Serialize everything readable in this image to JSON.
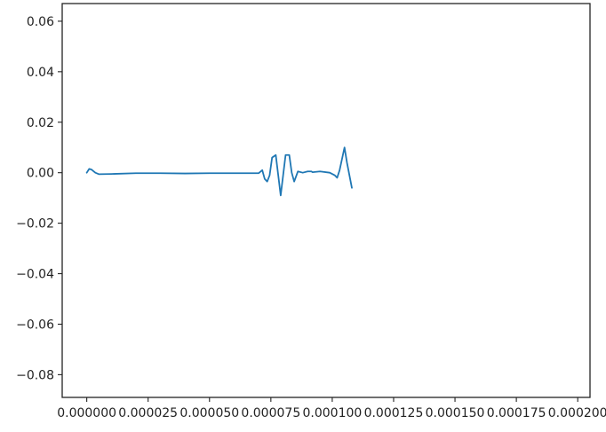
{
  "chart_data": {
    "type": "line",
    "title": "",
    "xlabel": "",
    "ylabel": "",
    "xlim": [
      -1e-05,
      0.000205
    ],
    "ylim": [
      -0.089,
      0.067
    ],
    "grid": false,
    "legend": "none",
    "x_ticks": [
      0.0,
      2.5e-05,
      5e-05,
      7.5e-05,
      0.0001,
      0.000125,
      0.00015,
      0.000175,
      0.0002
    ],
    "x_tick_labels": [
      "0.000000",
      "0.000025",
      "0.000050",
      "0.000075",
      "0.000100",
      "0.000125",
      "0.000150",
      "0.000175",
      "0.000200"
    ],
    "y_ticks": [
      -0.08,
      -0.06,
      -0.04,
      -0.02,
      0.0,
      0.02,
      0.04,
      0.06
    ],
    "y_tick_labels": [
      "−0.08",
      "−0.06",
      "−0.04",
      "−0.02",
      "0.00",
      "0.02",
      "0.04",
      "0.06"
    ],
    "colors": {
      "series": "#1f77b4",
      "axis": "#222222"
    },
    "series": [
      {
        "x": [
          0.0,
          1e-06,
          2e-06,
          3.5e-06,
          5e-06,
          1e-05,
          2e-05,
          3e-05,
          4e-05,
          5e-05,
          6e-05,
          7e-05,
          7.15e-05,
          7.25e-05,
          7.35e-05,
          7.45e-05,
          7.55e-05,
          7.7e-05,
          7.8e-05,
          7.9e-05,
          8e-05,
          8.1e-05,
          8.25e-05,
          8.35e-05,
          8.45e-05,
          8.6e-05,
          8.8e-05,
          9e-05,
          9.2e-05,
          9.5e-05,
          9.9e-05,
          0.000101,
          0.000102,
          0.000103,
          0.000105,
          0.000106,
          9.15e-05,
          0.000108
        ],
        "y": [
          0.0,
          0.0015,
          0.0012,
          0.0,
          -0.0006,
          -0.0005,
          -0.0002,
          -0.0002,
          -0.0003,
          -0.0002,
          -0.0002,
          -0.0002,
          0.001,
          -0.0025,
          -0.0035,
          -0.001,
          0.006,
          0.007,
          -0.001,
          -0.009,
          -0.001,
          0.007,
          0.007,
          0.0,
          -0.0035,
          0.0005,
          0.0,
          0.0005,
          0.0002,
          0.0005,
          0.0,
          -0.001,
          -0.002,
          0.001,
          0.01,
          0.004,
          0.0005,
          -0.006
        ]
      }
    ]
  }
}
